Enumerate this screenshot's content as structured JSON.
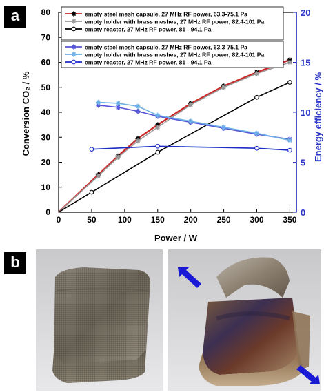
{
  "panels": {
    "a_label": "a",
    "b_label": "b"
  },
  "colors": {
    "left_axis": "#000000",
    "right_axis": "#2a35c9",
    "mesh_conv": "#cc2a2a",
    "holder_conv": "#9a9a9a",
    "reactor_conv": "#000000",
    "mesh_eff": "#5555d8",
    "holder_eff": "#6fb0e6",
    "reactor_eff": "#1c2bc4",
    "arrow": "#1a1ad6"
  },
  "chart_data": {
    "type": "line",
    "xlabel": "Power / W",
    "ylabel_left": "Conversion CO₂ / %",
    "ylabel_right": "Energy efficiency / %",
    "xlim": [
      0,
      360
    ],
    "ylim_left": [
      0,
      80
    ],
    "ylim_right": [
      0,
      20
    ],
    "x_ticks": [
      "0",
      "50",
      "100",
      "150",
      "200",
      "250",
      "300",
      "350"
    ],
    "y_left_ticks": [
      "0",
      "10",
      "20",
      "30",
      "40",
      "50",
      "60",
      "70",
      "80"
    ],
    "y_right_ticks": [
      "0",
      "5",
      "10",
      "15",
      "20"
    ],
    "grid": false,
    "legend_placement": "top-left",
    "series": [
      {
        "name": "empty steel mesh capsule, 27 MHz RF power, 63.3-75.1 Pa",
        "axis": "left",
        "color": "#cc2a2a",
        "marker": "star",
        "x": [
          0,
          60,
          90,
          120,
          150,
          200,
          250,
          300,
          350
        ],
        "y": [
          0,
          15,
          22.5,
          29.5,
          35,
          43.5,
          50.5,
          56,
          61
        ]
      },
      {
        "name": "empty holder with brass meshes, 27 MHz RF power,  82.4-101 Pa",
        "axis": "left",
        "color": "#9a9a9a",
        "marker": "star",
        "x": [
          0,
          60,
          90,
          120,
          150,
          200,
          250,
          300,
          350
        ],
        "y": [
          0,
          14.5,
          22,
          28.5,
          34,
          43,
          50,
          55.5,
          60
        ]
      },
      {
        "name": "empty reactor, 27 MHz RF power, 81 - 94.1 Pa",
        "axis": "left",
        "color": "#000000",
        "marker": "circle",
        "x": [
          0,
          50,
          150,
          300,
          350
        ],
        "y": [
          0,
          8,
          24,
          46,
          52
        ]
      },
      {
        "name": "empty steel mesh capsule, 27 MHz RF power, 63.3-75.1 Pa",
        "axis": "right",
        "color": "#5555d8",
        "marker": "star",
        "x": [
          60,
          90,
          120,
          150,
          200,
          250,
          300,
          350
        ],
        "y": [
          10.7,
          10.5,
          10.1,
          9.6,
          9.0,
          8.4,
          7.8,
          7.3
        ]
      },
      {
        "name": "empty holder with brass meshes, 27 MHz RF power,  82.4-101 Pa",
        "axis": "right",
        "color": "#6fb0e6",
        "marker": "star",
        "x": [
          60,
          90,
          120,
          150,
          200,
          250,
          300,
          350
        ],
        "y": [
          11.0,
          10.9,
          10.6,
          9.7,
          9.1,
          8.5,
          7.9,
          7.2
        ]
      },
      {
        "name": "empty reactor, 27 MHz RF power, 81 - 94.1 Pa",
        "axis": "right",
        "color": "#1c2bc4",
        "marker": "circle",
        "x": [
          50,
          150,
          300,
          350
        ],
        "y": [
          6.3,
          6.6,
          6.4,
          6.2
        ]
      }
    ]
  }
}
